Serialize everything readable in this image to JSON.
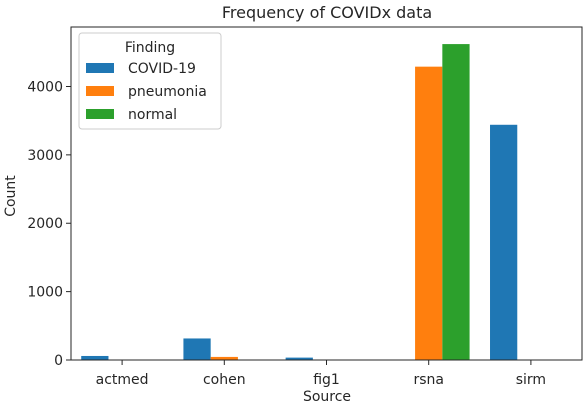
{
  "chart_data": {
    "type": "bar",
    "title": "Frequency of COVIDx data",
    "xlabel": "Source",
    "ylabel": "Count",
    "categories": [
      "actmed",
      "cohen",
      "fig1",
      "rsna",
      "sirm"
    ],
    "series": [
      {
        "name": "COVID-19",
        "color": "#1f77b4",
        "values": [
          59,
          315,
          35,
          0,
          3440
        ]
      },
      {
        "name": "pneumonia",
        "color": "#ff7f0e",
        "values": [
          0,
          45,
          0,
          4290,
          0
        ]
      },
      {
        "name": "normal",
        "color": "#2ca02c",
        "values": [
          0,
          0,
          0,
          4620,
          0
        ]
      }
    ],
    "yticks": [
      0,
      1000,
      2000,
      3000,
      4000
    ],
    "ylim": [
      0,
      4870
    ],
    "legend": {
      "title": "Finding",
      "placement": "top-left"
    },
    "grid": false
  }
}
